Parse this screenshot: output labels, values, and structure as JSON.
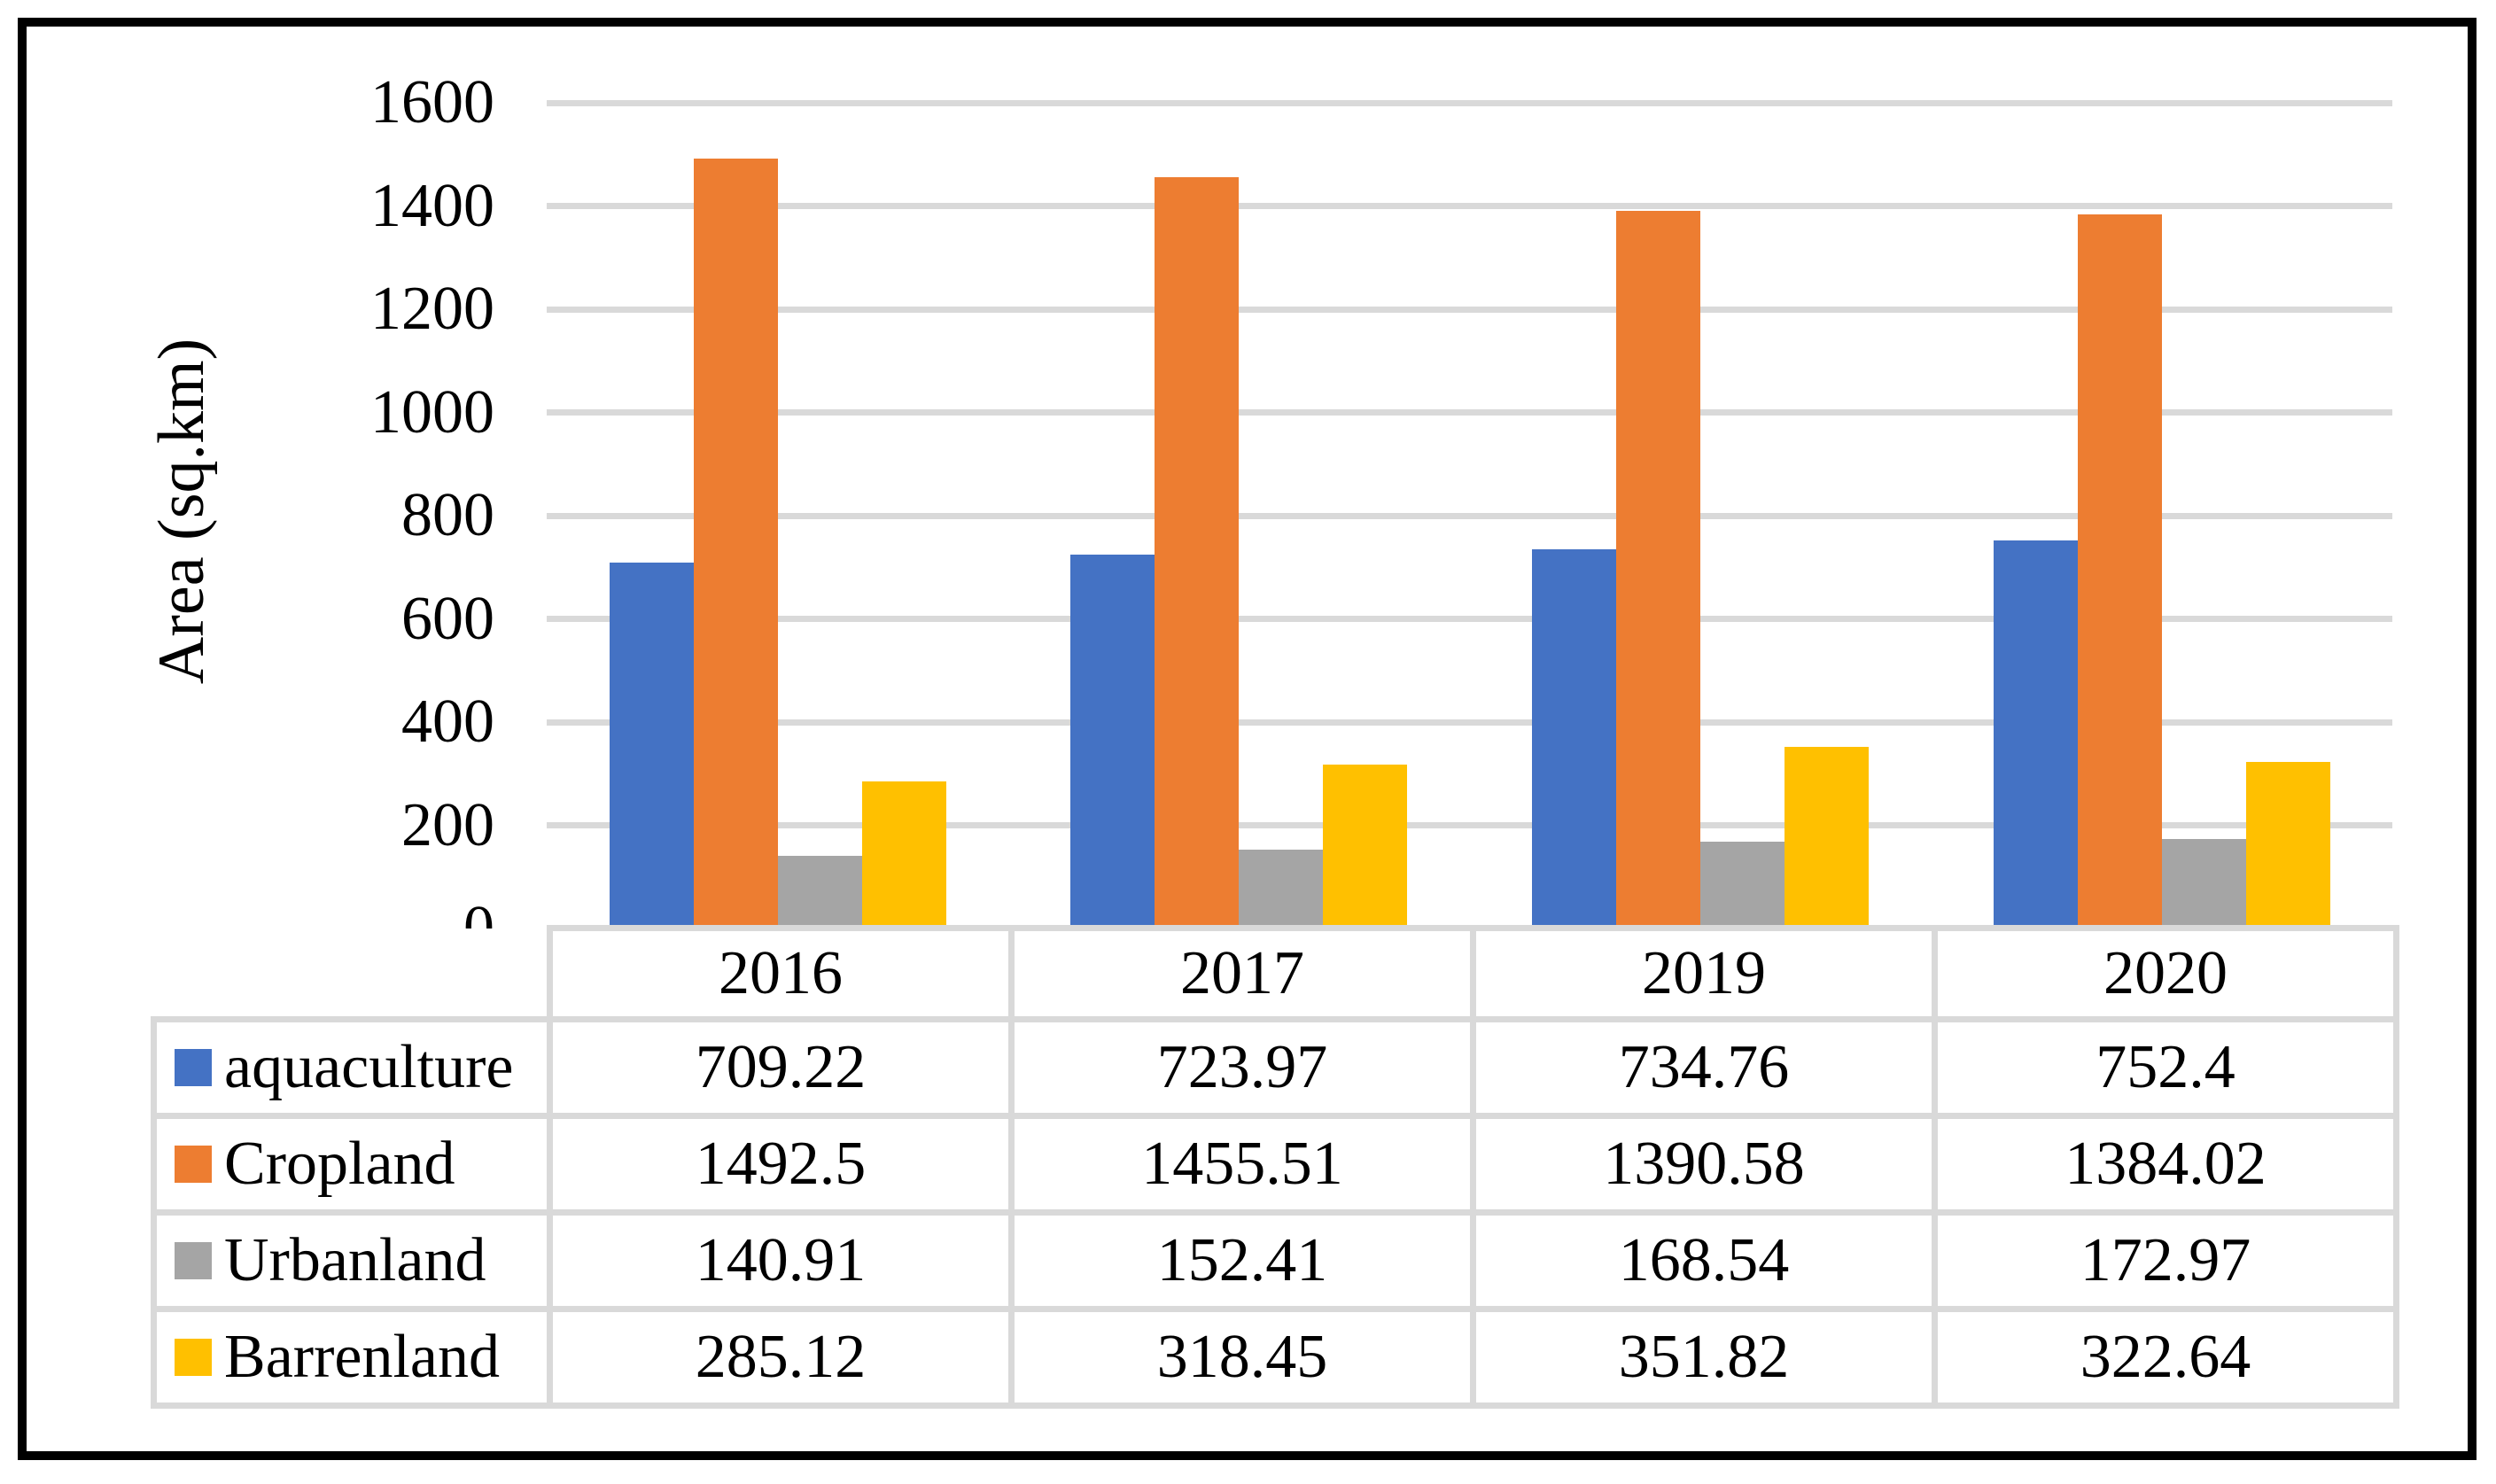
{
  "chart_data": {
    "type": "bar",
    "title": "",
    "xlabel": "",
    "ylabel": "Area (sq.km)",
    "categories": [
      "2016",
      "2017",
      "2019",
      "2020"
    ],
    "series": [
      {
        "name": "aquaculture",
        "color": "#4472C4",
        "values": [
          709.22,
          723.97,
          734.76,
          752.4
        ]
      },
      {
        "name": "Cropland",
        "color": "#ED7D31",
        "values": [
          1492.5,
          1455.51,
          1390.58,
          1384.02
        ]
      },
      {
        "name": "Urbanland",
        "color": "#A5A5A5",
        "values": [
          140.91,
          152.41,
          168.54,
          172.97
        ]
      },
      {
        "name": "Barrenland",
        "color": "#FFC000",
        "values": [
          285.12,
          318.45,
          351.82,
          322.64
        ]
      }
    ],
    "ylim": [
      0,
      1600
    ],
    "y_ticks": [
      0,
      200,
      400,
      600,
      800,
      1000,
      1200,
      1400,
      1600
    ],
    "grid": true,
    "gridline_color": "#D9D9D9",
    "legend_position": "table-left-column",
    "frame_color": "#000000",
    "table_border_color": "#D9D9D9"
  }
}
